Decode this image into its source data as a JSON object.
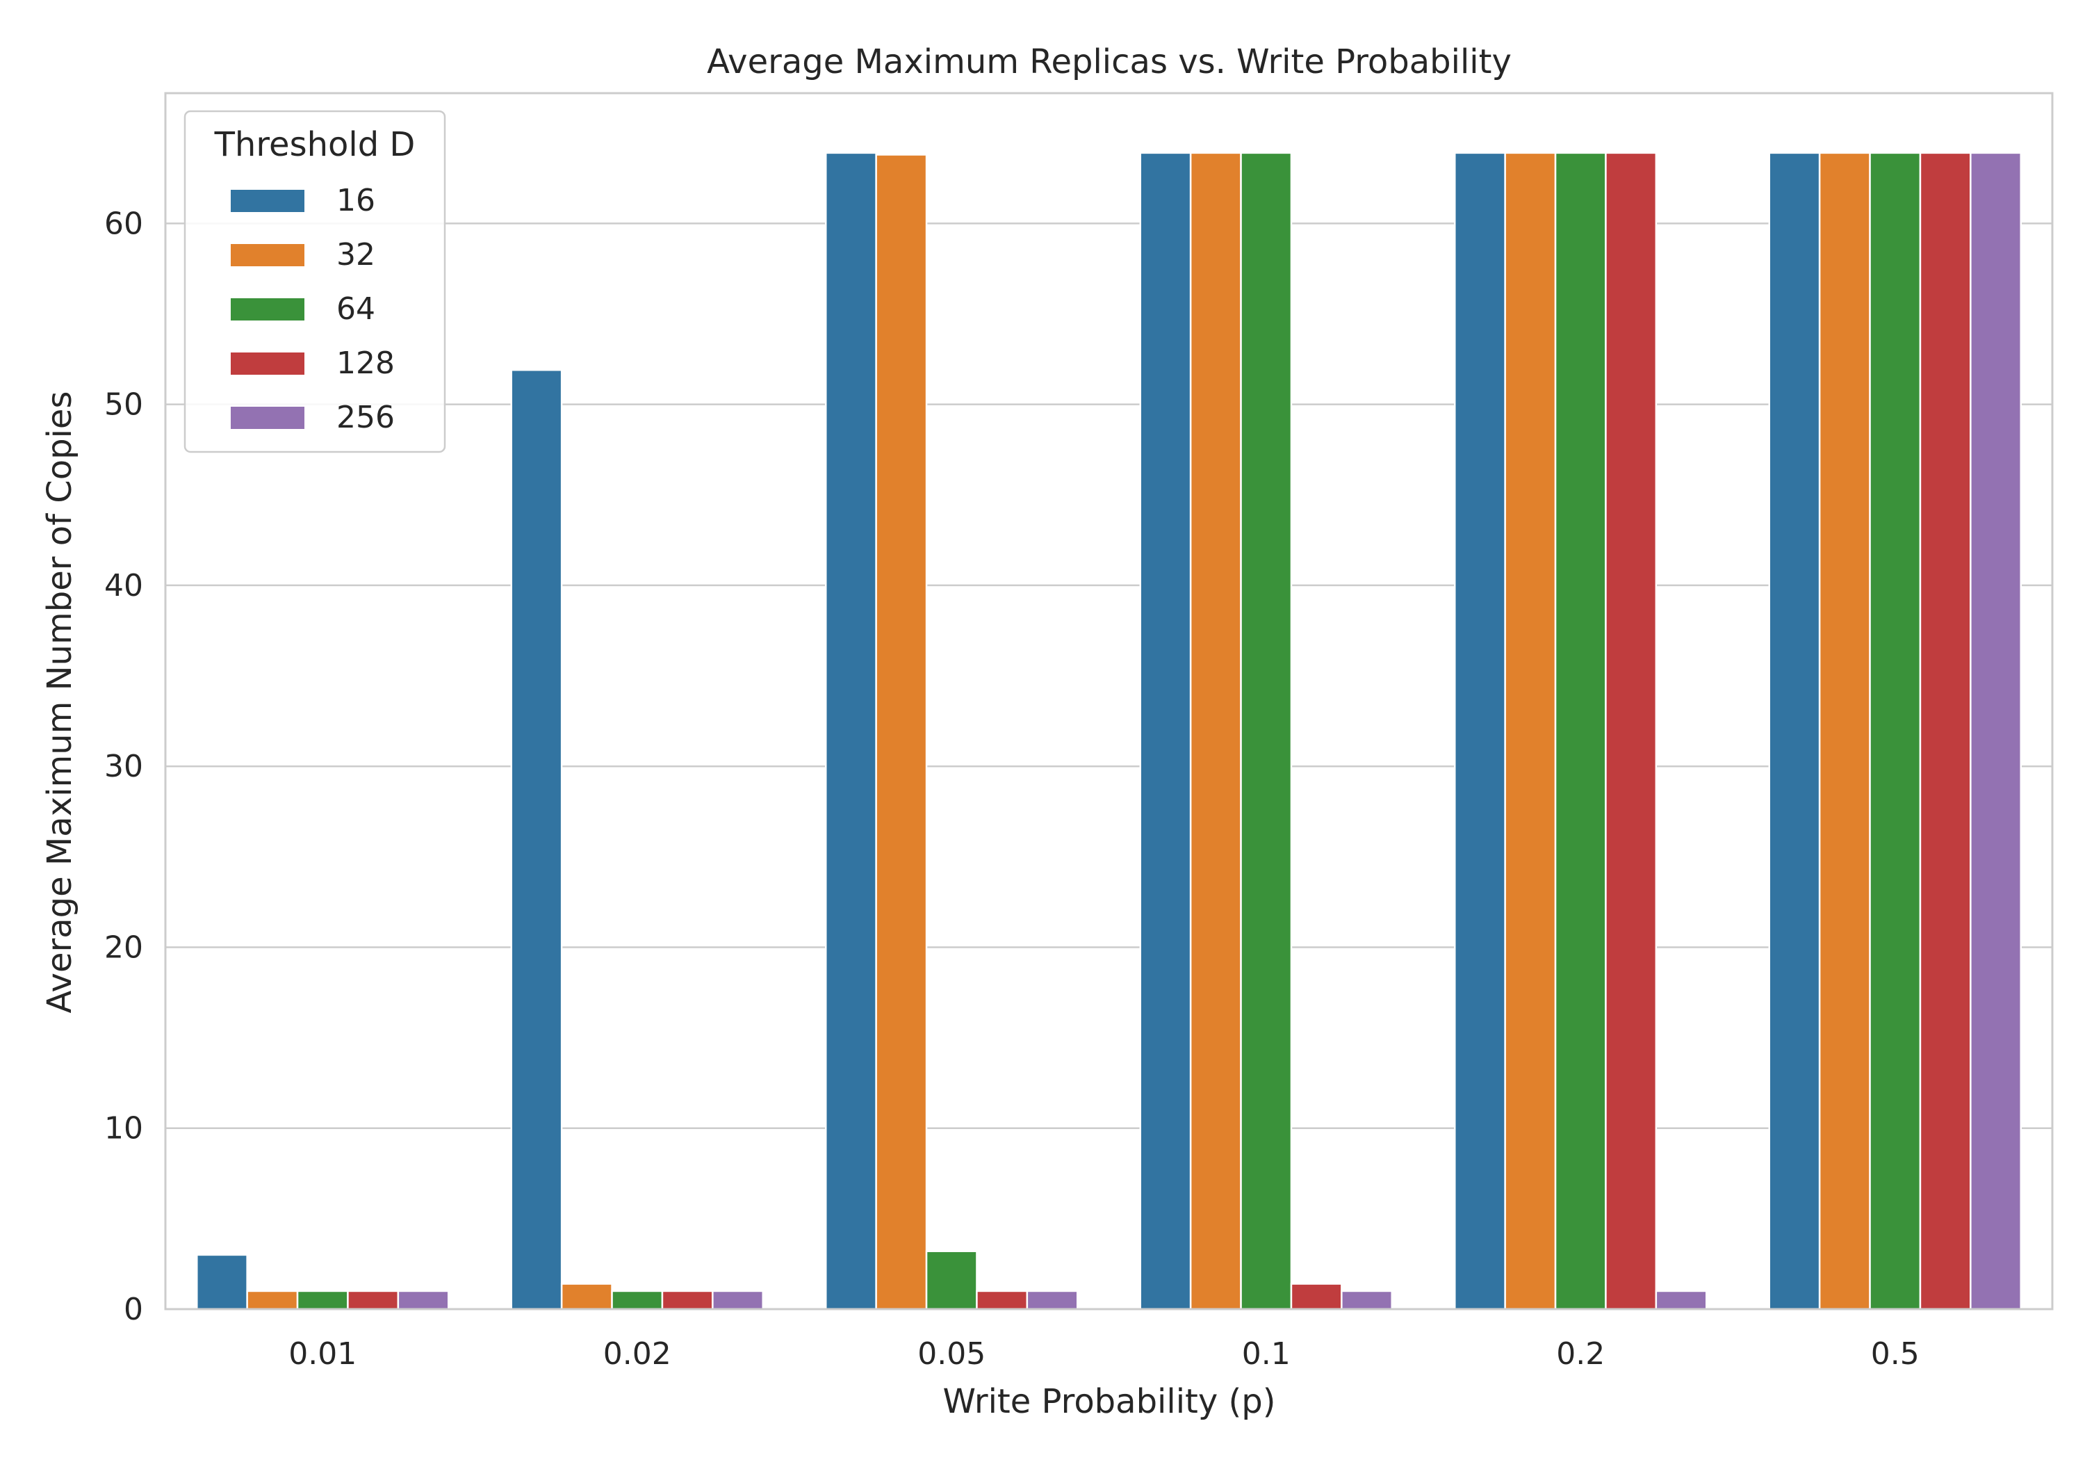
{
  "chart_data": {
    "type": "bar",
    "title": "Average Maximum Replicas vs. Write Probability",
    "xlabel": "Write Probability (p)",
    "ylabel": "Average Maximum Number of Copies",
    "categories": [
      "0.01",
      "0.02",
      "0.05",
      "0.1",
      "0.2",
      "0.5"
    ],
    "ylim": [
      0,
      67.2
    ],
    "yticks": [
      0,
      10,
      20,
      30,
      40,
      50,
      60
    ],
    "grid": true,
    "legend": {
      "title": "Threshold D",
      "placement": "top-left"
    },
    "series": [
      {
        "name": "16",
        "color": "#3274a1",
        "values": [
          3.0,
          51.9,
          63.9,
          63.9,
          63.9,
          63.9
        ]
      },
      {
        "name": "32",
        "color": "#e1812c",
        "values": [
          1.0,
          1.4,
          63.8,
          63.9,
          63.9,
          63.9
        ]
      },
      {
        "name": "64",
        "color": "#3a923a",
        "values": [
          1.0,
          1.0,
          3.2,
          63.9,
          63.9,
          63.9
        ]
      },
      {
        "name": "128",
        "color": "#c03d3e",
        "values": [
          1.0,
          1.0,
          1.0,
          1.4,
          63.9,
          63.9
        ]
      },
      {
        "name": "256",
        "color": "#9372b2",
        "values": [
          1.0,
          1.0,
          1.0,
          1.0,
          1.0,
          63.9
        ]
      }
    ]
  }
}
